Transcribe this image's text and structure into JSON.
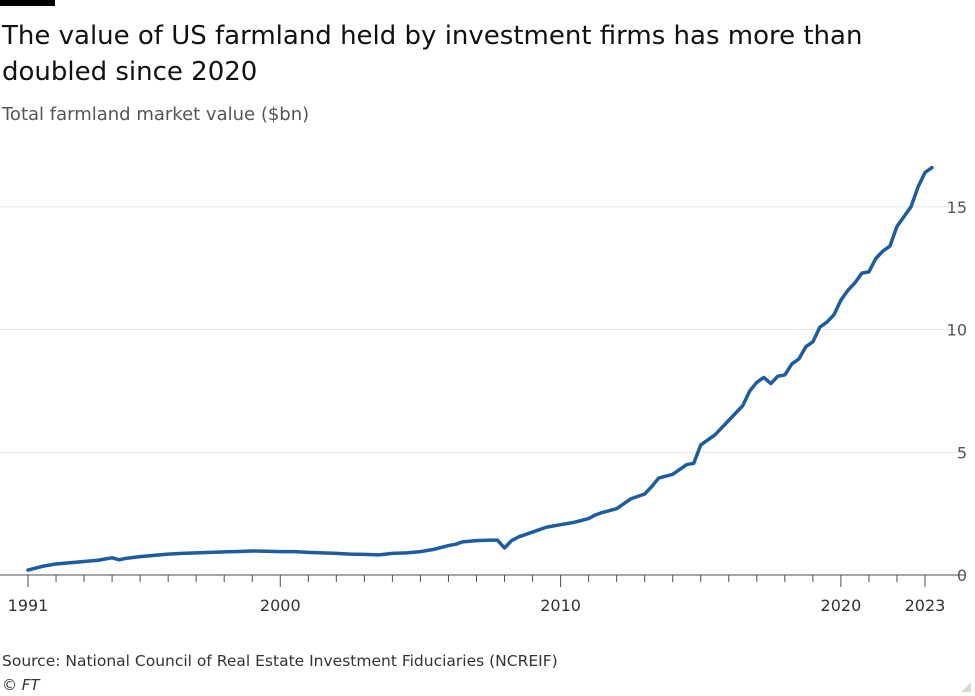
{
  "header": {
    "title": "The value of US farmland held by investment firms has more than doubled since 2020",
    "subtitle": "Total farmland market value ($bn)"
  },
  "footer": {
    "source": "Source: National Council of Real Estate Investment Fiduciaries (NCREIF)",
    "credit": "© FT"
  },
  "colors": {
    "line": "#1f5c9e",
    "grid": "#e6e6e6",
    "axis": "#4d4d4d"
  },
  "chart_data": {
    "type": "line",
    "title": "The value of US farmland held by investment firms has more than doubled since 2020",
    "subtitle": "Total farmland market value ($bn)",
    "xlabel": "",
    "ylabel": "Total farmland market value ($bn)",
    "xlim": [
      1991,
      2023.25
    ],
    "ylim": [
      0,
      16.5
    ],
    "grid": true,
    "y_axis_position": "right",
    "x_ticks": [
      1991,
      2000,
      2010,
      2020,
      2023
    ],
    "x_tick_labels": [
      "1991",
      "2000",
      "2010",
      "2020",
      "2023"
    ],
    "y_ticks": [
      0,
      5,
      10,
      15
    ],
    "y_tick_labels": [
      "0",
      "5",
      "10",
      "15"
    ],
    "series": [
      {
        "name": "Total farmland market value ($bn)",
        "x": [
          1991,
          1991.5,
          1992,
          1992.5,
          1993,
          1993.5,
          1994,
          1994.25,
          1994.5,
          1995,
          1995.5,
          1996,
          1996.5,
          1997,
          1997.5,
          1998,
          1998.5,
          1999,
          1999.5,
          2000,
          2000.5,
          2001,
          2001.5,
          2002,
          2002.5,
          2003,
          2003.5,
          2004,
          2004.5,
          2005,
          2005.5,
          2006,
          2006.25,
          2006.5,
          2007,
          2007.5,
          2007.75,
          2008,
          2008.25,
          2008.5,
          2009,
          2009.5,
          2010,
          2010.5,
          2011,
          2011.25,
          2011.5,
          2012,
          2012.25,
          2012.5,
          2013,
          2013.25,
          2013.5,
          2014,
          2014.25,
          2014.5,
          2014.75,
          2015,
          2015.5,
          2016,
          2016.5,
          2016.75,
          2017,
          2017.25,
          2017.5,
          2017.75,
          2018,
          2018.25,
          2018.5,
          2018.75,
          2019,
          2019.25,
          2019.5,
          2019.75,
          2020,
          2020.25,
          2020.5,
          2020.75,
          2021,
          2021.25,
          2021.5,
          2021.75,
          2022,
          2022.25,
          2022.5,
          2022.75,
          2023,
          2023.25
        ],
        "values": [
          0.2,
          0.35,
          0.45,
          0.5,
          0.55,
          0.6,
          0.7,
          0.62,
          0.68,
          0.75,
          0.8,
          0.85,
          0.88,
          0.9,
          0.92,
          0.94,
          0.96,
          0.98,
          0.97,
          0.95,
          0.95,
          0.92,
          0.9,
          0.88,
          0.85,
          0.84,
          0.82,
          0.88,
          0.9,
          0.95,
          1.05,
          1.2,
          1.25,
          1.35,
          1.4,
          1.42,
          1.42,
          1.1,
          1.4,
          1.55,
          1.75,
          1.95,
          2.05,
          2.15,
          2.3,
          2.45,
          2.55,
          2.7,
          2.9,
          3.1,
          3.3,
          3.6,
          3.95,
          4.1,
          4.3,
          4.5,
          4.55,
          5.3,
          5.7,
          6.3,
          6.9,
          7.5,
          7.85,
          8.05,
          7.8,
          8.1,
          8.15,
          8.6,
          8.8,
          9.3,
          9.5,
          10.1,
          10.3,
          10.6,
          11.2,
          11.6,
          11.9,
          12.3,
          12.35,
          12.9,
          13.2,
          13.4,
          14.2,
          14.6,
          15.0,
          15.8,
          16.4,
          16.6
        ]
      }
    ]
  }
}
